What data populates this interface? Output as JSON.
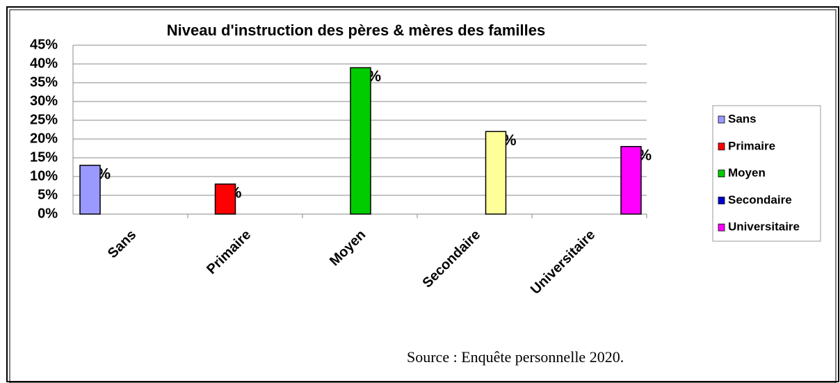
{
  "chart_data": {
    "type": "bar",
    "title": "Niveau d'instruction des pères & mères des familles",
    "categories": [
      "Sans",
      "Primaire",
      "Moyen",
      "Secondaire",
      "Universitaire"
    ],
    "values": [
      13,
      8,
      39,
      22,
      18
    ],
    "value_labels": [
      "13%",
      "8%",
      "39%",
      "22%",
      "18%"
    ],
    "colors": [
      "#9999ff",
      "#ff0000",
      "#00cc00",
      "#ffff99",
      "#ff00ff"
    ],
    "legend_colors": [
      "#9999ff",
      "#ff0000",
      "#00cc00",
      "#0000cc",
      "#ff00ff"
    ],
    "ylim": [
      0,
      45
    ],
    "yticks": [
      {
        "value": 0,
        "label": "0%"
      },
      {
        "value": 5,
        "label": "5%"
      },
      {
        "value": 10,
        "label": "10%"
      },
      {
        "value": 15,
        "label": "15%"
      },
      {
        "value": 20,
        "label": "20%"
      },
      {
        "value": 25,
        "label": "25%"
      },
      {
        "value": 30,
        "label": "30%"
      },
      {
        "value": 35,
        "label": "35%"
      },
      {
        "value": 40,
        "label": "40%"
      },
      {
        "value": 45,
        "label": "45%"
      }
    ],
    "grid": true,
    "legend": "right",
    "source": "Source : Enquête personnelle 2020."
  }
}
